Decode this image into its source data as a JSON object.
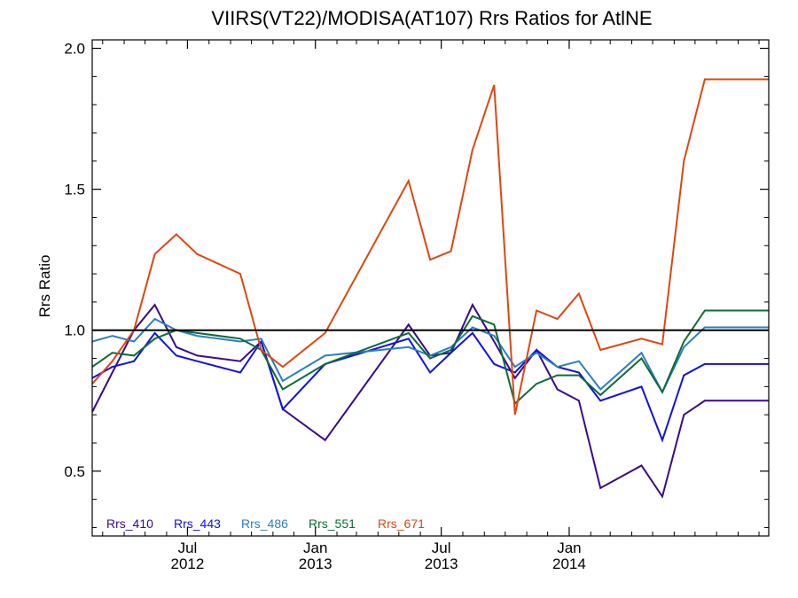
{
  "chart_data": {
    "type": "line",
    "title": "VIIRS(VT22)/MODISA(AT107)  Rrs Ratios for AtlNE",
    "xlabel": "",
    "ylabel": "Rrs Ratio",
    "ylim": [
      0.27,
      2.03
    ],
    "xlim": [
      "2012-02-15",
      "2014-10-15"
    ],
    "yticks": [
      {
        "value": 0.5,
        "label": "0.5"
      },
      {
        "value": 1.0,
        "label": "1.0"
      },
      {
        "value": 1.5,
        "label": "1.5"
      },
      {
        "value": 2.0,
        "label": "2.0"
      }
    ],
    "xticks": [
      {
        "date": "2012-07-01",
        "line1": "Jul",
        "line2": "2012"
      },
      {
        "date": "2013-01-01",
        "line1": "Jan",
        "line2": "2013"
      },
      {
        "date": "2013-07-01",
        "line1": "Jul",
        "line2": "2013"
      },
      {
        "date": "2014-01-01",
        "line1": "Jan",
        "line2": "2014"
      }
    ],
    "reference_line": {
      "y": 1.0,
      "color": "#000000"
    },
    "x": [
      "2012-02-15",
      "2012-03-15",
      "2012-04-15",
      "2012-05-15",
      "2012-06-15",
      "2012-07-15",
      "2012-09-15",
      "2012-10-15",
      "2012-11-15",
      "2013-01-15",
      "2013-05-15",
      "2013-06-15",
      "2013-07-15",
      "2013-08-15",
      "2013-09-15",
      "2013-10-15",
      "2013-11-15",
      "2013-12-15",
      "2014-01-15",
      "2014-02-15",
      "2014-04-15",
      "2014-05-15",
      "2014-06-15",
      "2014-07-15",
      "2014-08-15",
      "2014-09-15",
      "2014-10-15"
    ],
    "series": [
      {
        "name": "Rrs_410",
        "color": "#3a0a8c",
        "x": [
          "2012-02-15",
          "2012-03-15",
          "2012-04-15",
          "2012-05-15",
          "2012-06-15",
          "2012-07-15",
          "2012-09-15",
          "2012-10-15",
          "2012-11-15",
          "2013-01-15",
          "2013-05-15",
          "2013-06-15",
          "2013-07-15",
          "2013-08-15",
          "2013-09-15",
          "2013-10-15",
          "2013-11-15",
          "2013-12-15",
          "2014-01-15",
          "2014-02-15",
          "2014-04-15",
          "2014-05-15",
          "2014-06-15",
          "2014-07-15",
          "2014-08-15",
          "2014-09-15",
          "2014-10-15"
        ],
        "values": [
          0.71,
          0.85,
          1.0,
          1.09,
          0.94,
          0.91,
          0.89,
          0.96,
          0.72,
          0.61,
          1.02,
          0.91,
          0.92,
          1.09,
          0.96,
          0.83,
          0.93,
          0.79,
          0.75,
          0.44,
          0.52,
          0.41,
          0.7,
          0.75,
          0.75,
          0.75,
          0.75
        ]
      },
      {
        "name": "Rrs_443",
        "color": "#1010e8",
        "x": [
          "2012-02-15",
          "2012-03-15",
          "2012-04-15",
          "2012-05-15",
          "2012-06-15",
          "2012-07-15",
          "2012-09-15",
          "2012-10-15",
          "2012-11-15",
          "2013-01-15",
          "2013-05-15",
          "2013-06-15",
          "2013-07-15",
          "2013-08-15",
          "2013-09-15",
          "2013-10-15",
          "2013-11-15",
          "2013-12-15",
          "2014-01-15",
          "2014-02-15",
          "2014-04-15",
          "2014-05-15",
          "2014-06-15",
          "2014-07-15",
          "2014-08-15",
          "2014-09-15",
          "2014-10-15"
        ],
        "values": [
          0.83,
          0.87,
          0.89,
          0.99,
          0.91,
          0.89,
          0.85,
          0.96,
          0.72,
          0.88,
          0.97,
          0.85,
          0.92,
          0.99,
          0.88,
          0.85,
          0.93,
          0.87,
          0.85,
          0.75,
          0.8,
          0.61,
          0.84,
          0.88,
          0.88,
          0.88,
          0.88
        ]
      },
      {
        "name": "Rrs_486",
        "color": "#2b7fc0",
        "x": [
          "2012-02-15",
          "2012-03-15",
          "2012-04-15",
          "2012-05-15",
          "2012-06-15",
          "2012-07-15",
          "2012-09-15",
          "2012-10-15",
          "2012-11-15",
          "2013-01-15",
          "2013-05-15",
          "2013-06-15",
          "2013-07-15",
          "2013-08-15",
          "2013-09-15",
          "2013-10-15",
          "2013-11-15",
          "2013-12-15",
          "2014-01-15",
          "2014-02-15",
          "2014-04-15",
          "2014-05-15",
          "2014-06-15",
          "2014-07-15",
          "2014-08-15",
          "2014-09-15",
          "2014-10-15"
        ],
        "values": [
          0.96,
          0.98,
          0.96,
          1.04,
          1.0,
          0.98,
          0.96,
          0.97,
          0.82,
          0.91,
          0.94,
          0.91,
          0.94,
          1.01,
          0.98,
          0.87,
          0.92,
          0.87,
          0.89,
          0.79,
          0.92,
          0.78,
          0.94,
          1.01,
          1.01,
          1.01,
          1.01
        ]
      },
      {
        "name": "Rrs_551",
        "color": "#0c6b38",
        "x": [
          "2012-02-15",
          "2012-03-15",
          "2012-04-15",
          "2012-05-15",
          "2012-06-15",
          "2012-07-15",
          "2012-09-15",
          "2012-10-15",
          "2012-11-15",
          "2013-01-15",
          "2013-05-15",
          "2013-06-15",
          "2013-07-15",
          "2013-08-15",
          "2013-09-15",
          "2013-10-15",
          "2013-11-15",
          "2013-12-15",
          "2014-01-15",
          "2014-02-15",
          "2014-04-15",
          "2014-05-15",
          "2014-06-15",
          "2014-07-15",
          "2014-08-15",
          "2014-09-15",
          "2014-10-15"
        ],
        "values": [
          0.87,
          0.92,
          0.91,
          0.97,
          1.0,
          0.99,
          0.97,
          0.93,
          0.79,
          0.88,
          0.99,
          0.9,
          0.93,
          1.05,
          1.02,
          0.74,
          0.81,
          0.84,
          0.84,
          0.77,
          0.9,
          0.78,
          0.96,
          1.07,
          1.07,
          1.07,
          1.07
        ]
      },
      {
        "name": "Rrs_671",
        "color": "#e0460e",
        "x": [
          "2012-02-15",
          "2012-03-15",
          "2012-04-15",
          "2012-05-15",
          "2012-06-15",
          "2012-07-15",
          "2012-09-15",
          "2012-10-15",
          "2012-11-15",
          "2013-01-15",
          "2013-05-15",
          "2013-06-15",
          "2013-07-15",
          "2013-08-15",
          "2013-09-15",
          "2013-10-15",
          "2013-11-15",
          "2013-12-15",
          "2014-01-15",
          "2014-02-15",
          "2014-04-15",
          "2014-05-15",
          "2014-06-15",
          "2014-07-15",
          "2014-08-15",
          "2014-09-15",
          "2014-10-15"
        ],
        "values": [
          0.81,
          0.89,
          1.0,
          1.27,
          1.34,
          1.27,
          1.2,
          0.93,
          0.87,
          0.99,
          1.53,
          1.25,
          1.28,
          1.64,
          1.87,
          0.7,
          1.07,
          1.04,
          1.13,
          0.93,
          0.97,
          0.95,
          1.6,
          1.89,
          1.89,
          1.89,
          1.89
        ]
      }
    ],
    "legend": {
      "placement": "bottom-left"
    },
    "grid": false
  }
}
